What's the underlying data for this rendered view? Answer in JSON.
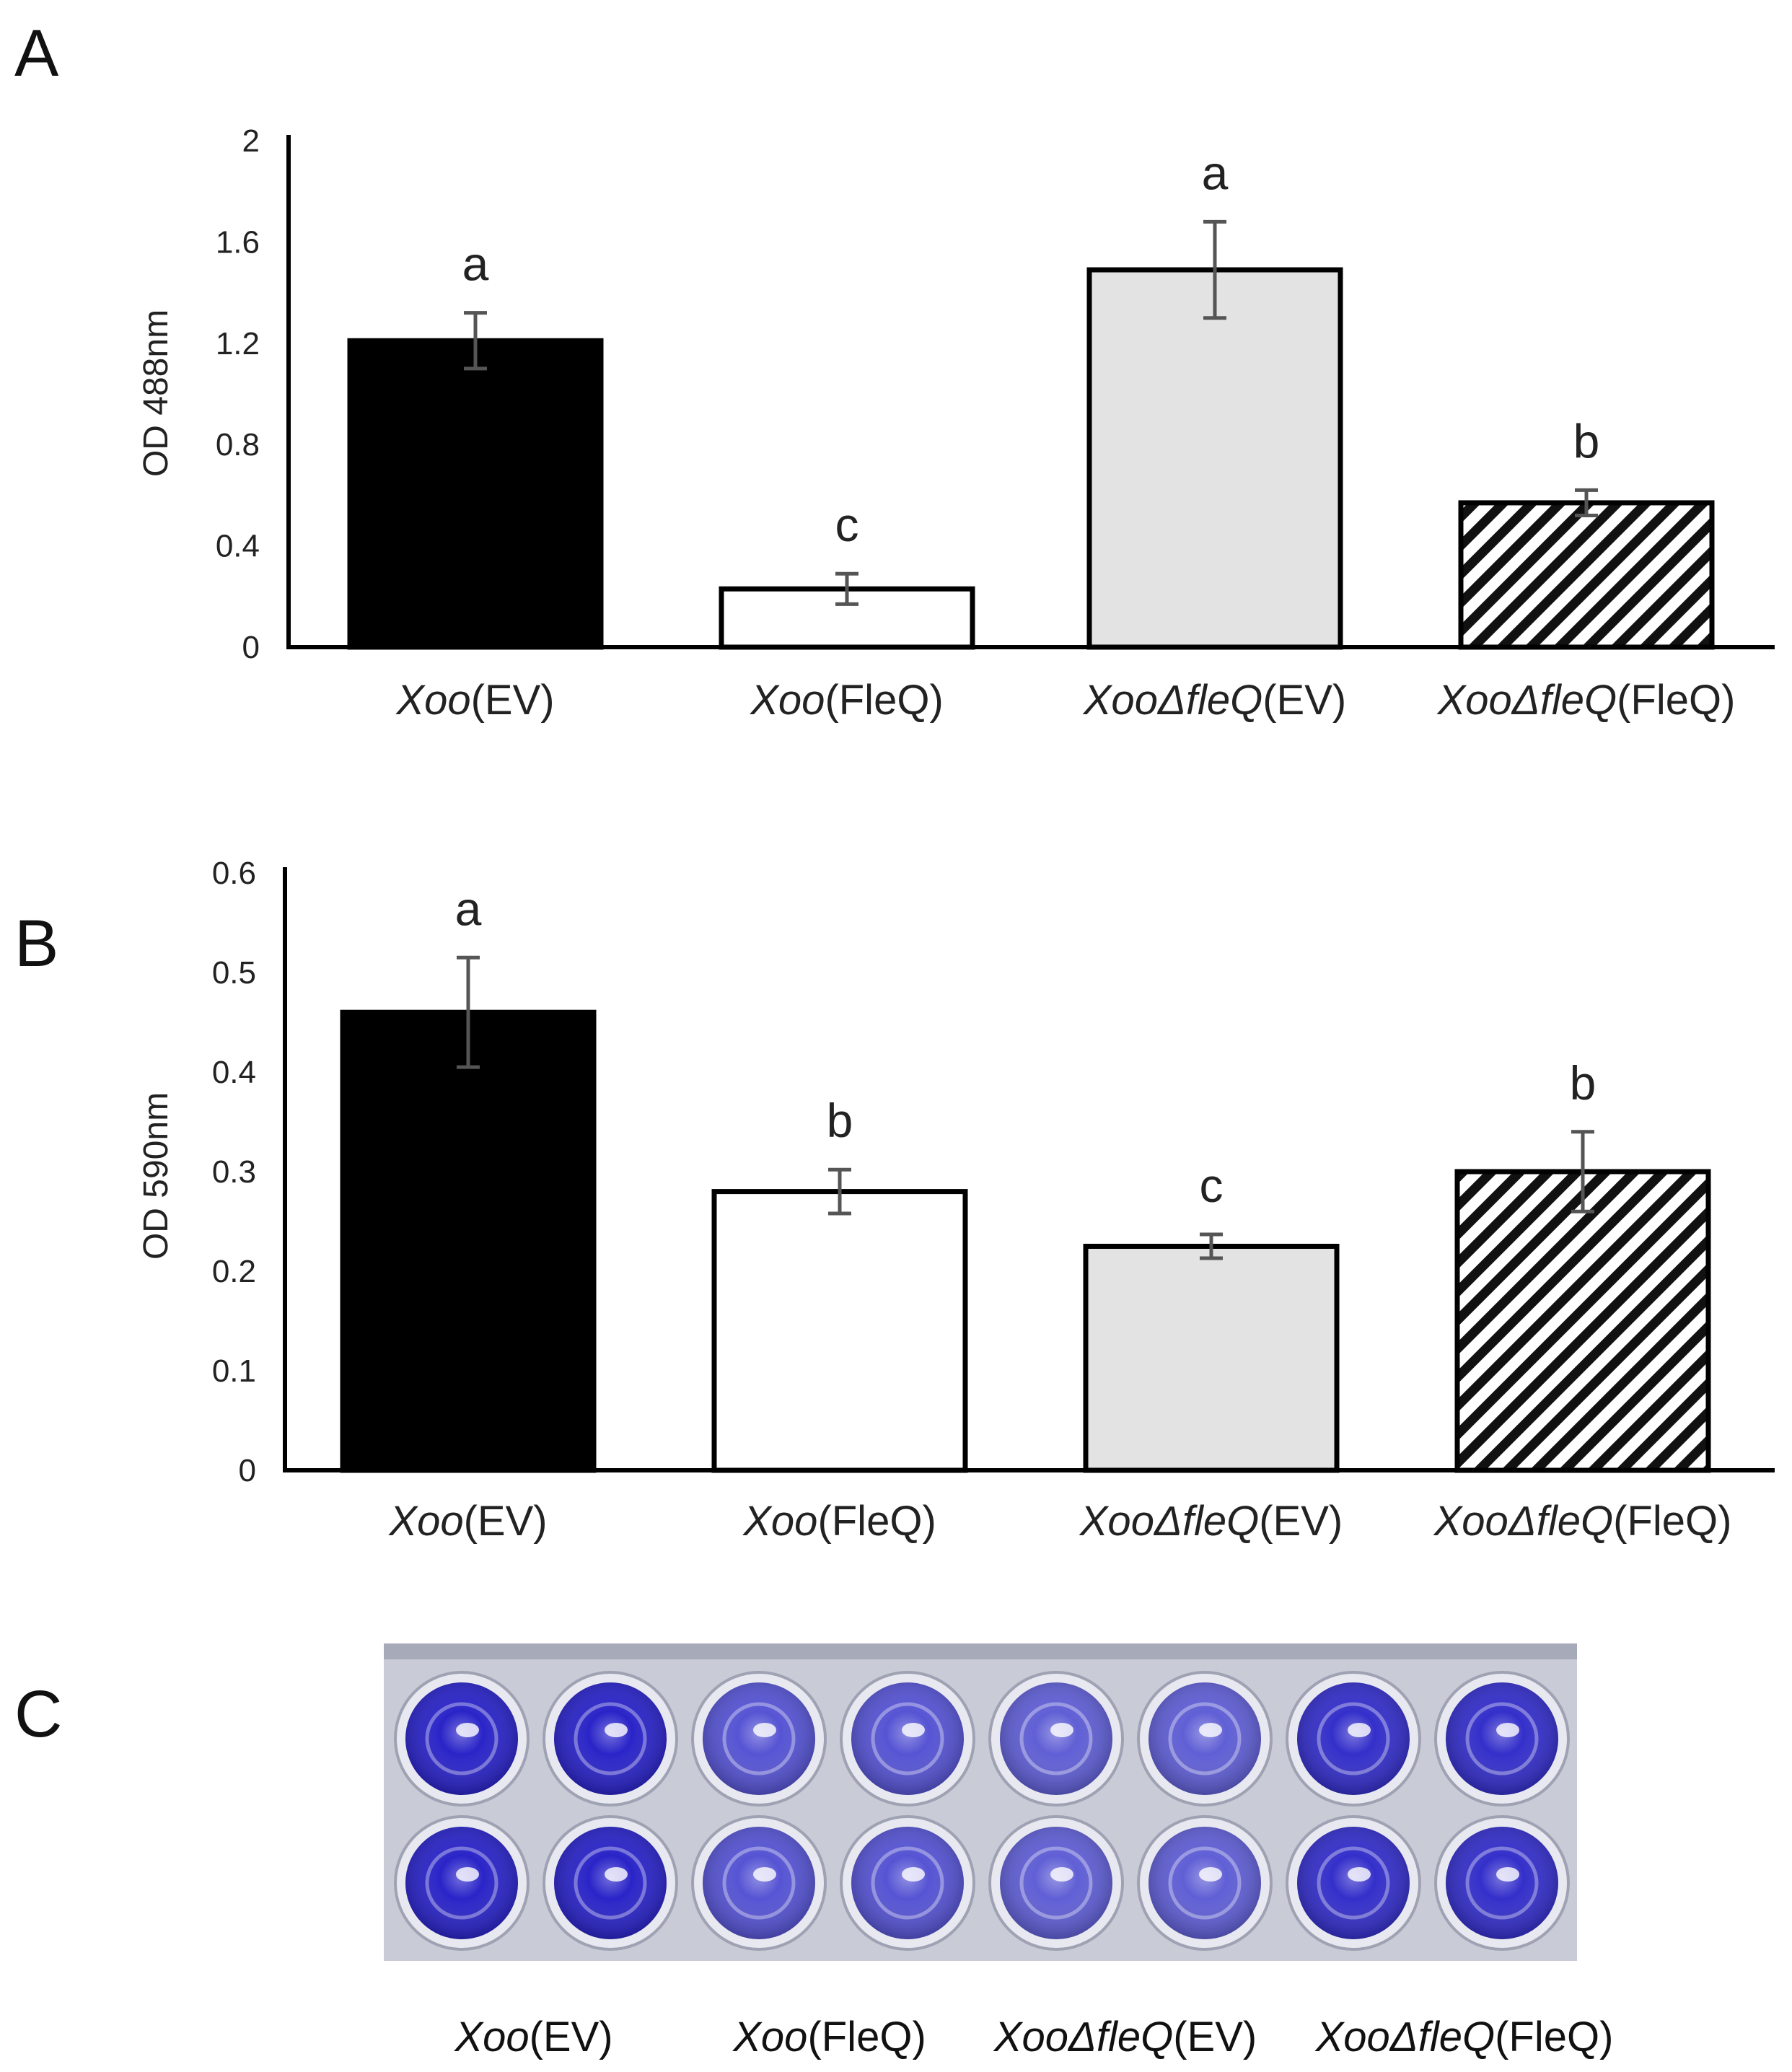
{
  "panels": {
    "a": "A",
    "b": "B",
    "c": "C"
  },
  "chart_data": [
    {
      "type": "bar",
      "panel": "A",
      "ylabel": "OD 488nm",
      "ylim": [
        0,
        2
      ],
      "yticks": [
        "0",
        "0.4",
        "0.8",
        "1.2",
        "1.6",
        "2"
      ],
      "grid": false,
      "categories": [
        {
          "italic": "Xoo",
          "rest": "(EV)"
        },
        {
          "italic": "Xoo",
          "rest": "(FleQ)"
        },
        {
          "italic": "XooΔfleQ",
          "rest": "(EV)"
        },
        {
          "italic": "XooΔfleQ",
          "rest": "(FleQ)"
        }
      ],
      "values": [
        1.21,
        0.23,
        1.49,
        0.57
      ],
      "errors": [
        0.11,
        0.06,
        0.19,
        0.05
      ],
      "significance": [
        "a",
        "c",
        "a",
        "b"
      ],
      "fills": [
        "black",
        "white",
        "lightgray",
        "hatched"
      ]
    },
    {
      "type": "bar",
      "panel": "B",
      "ylabel": "OD 590nm",
      "ylim": [
        0,
        0.6
      ],
      "yticks": [
        "0",
        "0.1",
        "0.2",
        "0.3",
        "0.4",
        "0.5",
        "0.6"
      ],
      "grid": false,
      "categories": [
        {
          "italic": "Xoo",
          "rest": "(EV)"
        },
        {
          "italic": "Xoo",
          "rest": "(FleQ)"
        },
        {
          "italic": "XooΔfleQ",
          "rest": "(EV)"
        },
        {
          "italic": "XooΔfleQ",
          "rest": "(FleQ)"
        }
      ],
      "values": [
        0.46,
        0.28,
        0.225,
        0.3
      ],
      "errors": [
        0.055,
        0.022,
        0.012,
        0.04
      ],
      "significance": [
        "a",
        "b",
        "c",
        "b"
      ],
      "fills": [
        "black",
        "white",
        "lightgray",
        "hatched"
      ]
    }
  ],
  "plate": {
    "stain_intensity": [
      1.0,
      1.0,
      0.55,
      0.55,
      0.45,
      0.45,
      0.9,
      0.9
    ],
    "labels": [
      {
        "italic": "Xoo",
        "rest": "(EV)"
      },
      {
        "italic": "Xoo",
        "rest": "(FleQ)"
      },
      {
        "italic": "XooΔfleQ",
        "rest": "(EV)"
      },
      {
        "italic": "XooΔfleQ",
        "rest": "(FleQ)"
      }
    ]
  },
  "colors": {
    "bar_black": "#000000",
    "bar_white": "#ffffff",
    "bar_gray": "#e3e3e3",
    "error_bar": "#555555",
    "well_dark": "#2a24c8",
    "well_light": "#8c8fe0",
    "plate_bg": "#c9cbd6"
  }
}
